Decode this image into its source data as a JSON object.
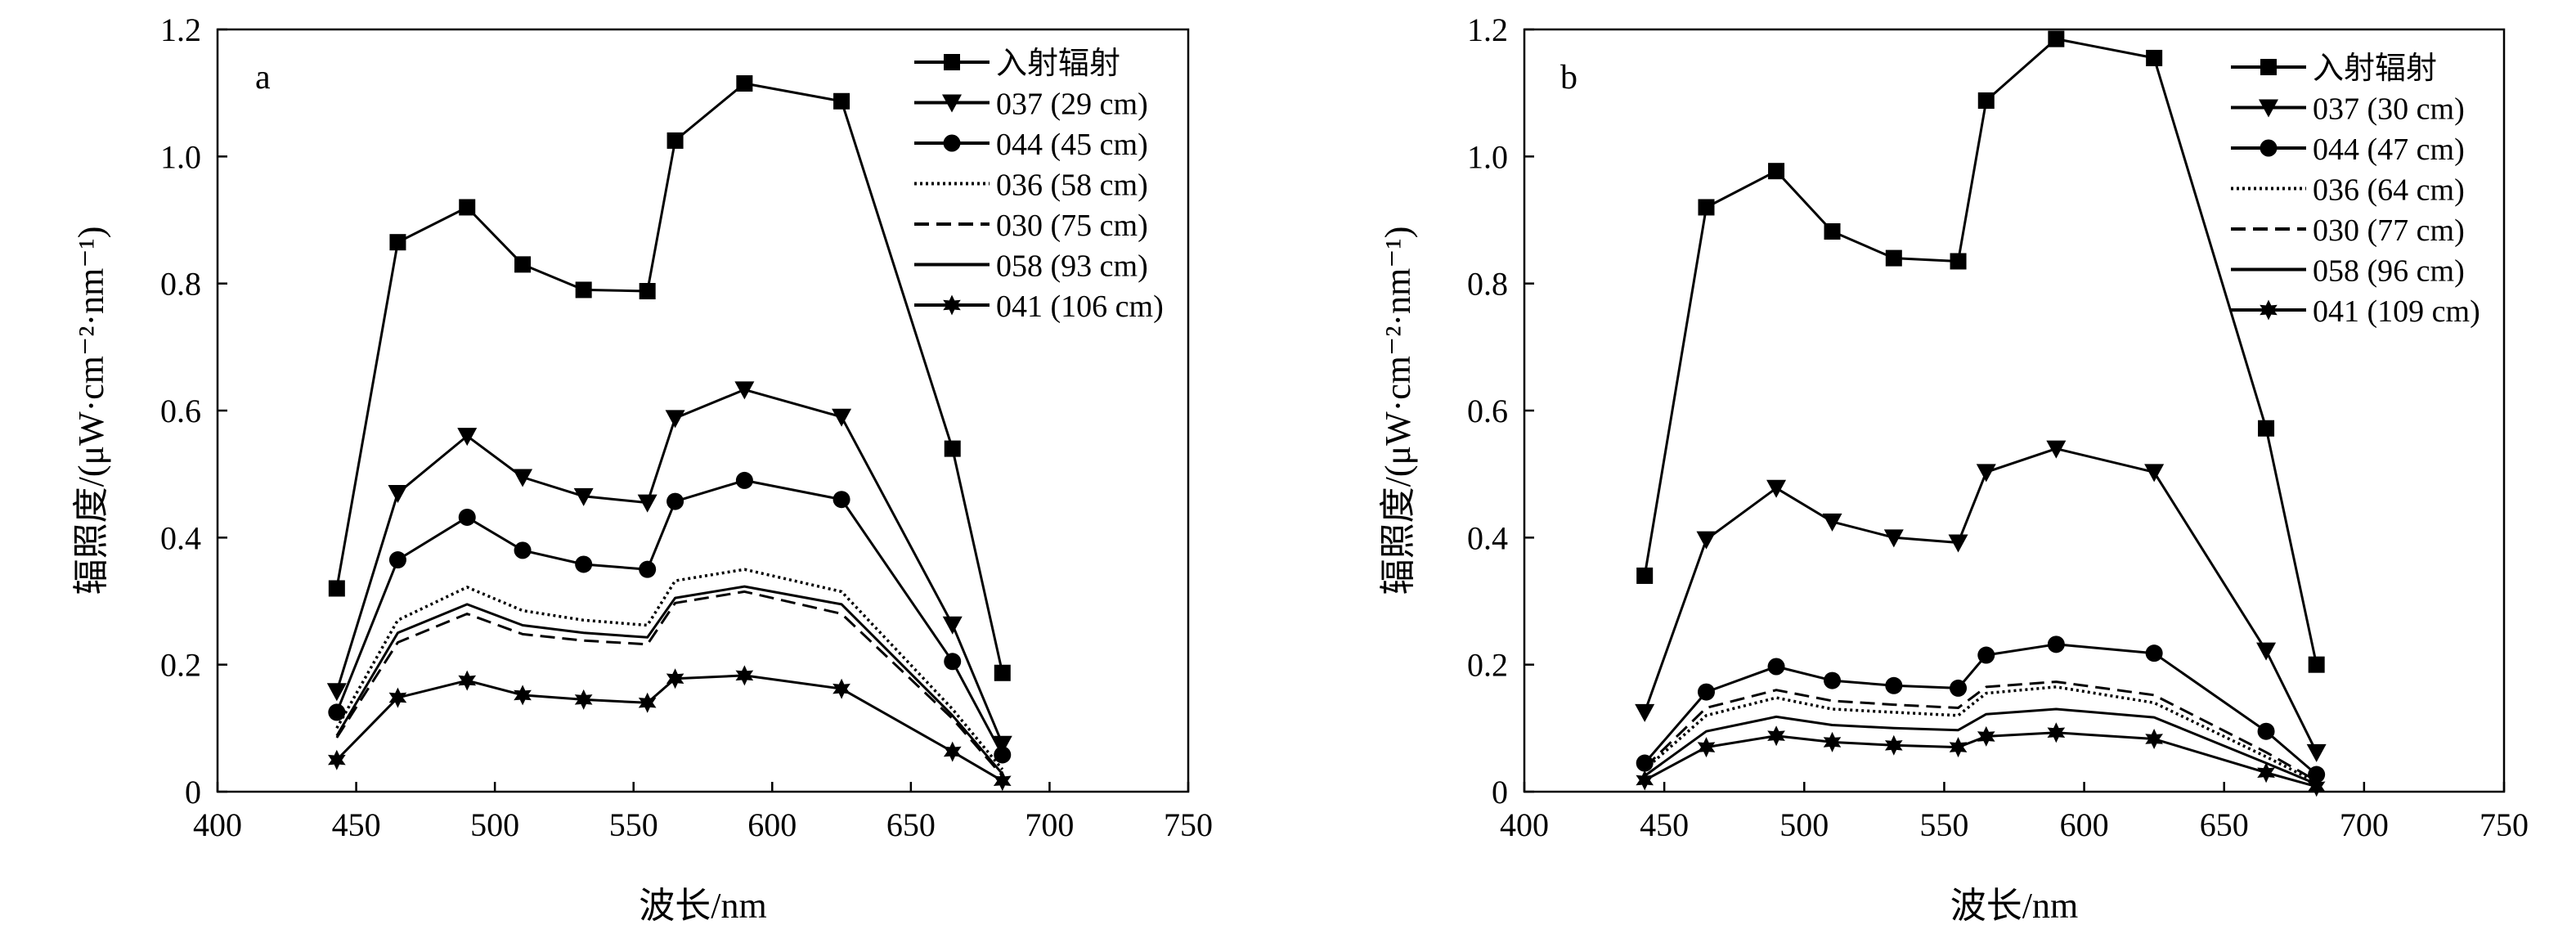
{
  "chart_data": [
    {
      "type": "line",
      "panel_label": "a",
      "xlabel": "波长/nm",
      "ylabel": "辐照度/(μW·cm⁻²·nm⁻¹)",
      "xlim": [
        400,
        750
      ],
      "ylim": [
        0,
        1.2
      ],
      "xticks": [
        "400",
        "450",
        "500",
        "550",
        "600",
        "650",
        "700",
        "750"
      ],
      "yticks": [
        "0",
        "0.2",
        "0.4",
        "0.6",
        "0.8",
        "1.0",
        "1.2"
      ],
      "legend_position": "top-right",
      "x": [
        443,
        465,
        490,
        510,
        532,
        555,
        565,
        590,
        625,
        665,
        683
      ],
      "series": [
        {
          "name": "入射辐射",
          "marker": "square",
          "dash": "solid",
          "values": [
            0.32,
            0.865,
            0.92,
            0.83,
            0.79,
            0.788,
            1.025,
            1.115,
            1.087,
            0.54,
            0.187
          ]
        },
        {
          "name": "037 (29 cm)",
          "marker": "triangle-down",
          "dash": "solid",
          "values": [
            0.158,
            0.47,
            0.56,
            0.495,
            0.465,
            0.455,
            0.588,
            0.633,
            0.59,
            0.263,
            0.075
          ]
        },
        {
          "name": "044 (45 cm)",
          "marker": "circle",
          "dash": "solid",
          "values": [
            0.125,
            0.365,
            0.432,
            0.38,
            0.358,
            0.35,
            0.457,
            0.49,
            0.46,
            0.205,
            0.058
          ]
        },
        {
          "name": "036 (58 cm)",
          "marker": "none",
          "dash": "dotted",
          "values": [
            0.1,
            0.27,
            0.322,
            0.285,
            0.27,
            0.262,
            0.332,
            0.35,
            0.315,
            0.13,
            0.035
          ]
        },
        {
          "name": "030 (75 cm)",
          "marker": "none",
          "dash": "dashed",
          "values": [
            0.085,
            0.235,
            0.28,
            0.248,
            0.238,
            0.232,
            0.297,
            0.315,
            0.28,
            0.115,
            0.025
          ]
        },
        {
          "name": "058 (93 cm)",
          "marker": "none",
          "dash": "solid",
          "values": [
            0.088,
            0.25,
            0.295,
            0.262,
            0.25,
            0.243,
            0.305,
            0.323,
            0.295,
            0.12,
            0.028
          ]
        },
        {
          "name": "041 (106 cm)",
          "marker": "star",
          "dash": "solid",
          "values": [
            0.05,
            0.148,
            0.175,
            0.152,
            0.145,
            0.14,
            0.178,
            0.183,
            0.162,
            0.063,
            0.017
          ]
        }
      ]
    },
    {
      "type": "line",
      "panel_label": "b",
      "xlabel": "波长/nm",
      "ylabel": "辐照度/(μW·cm⁻²·nm⁻¹)",
      "xlim": [
        400,
        750
      ],
      "ylim": [
        0,
        1.2
      ],
      "xticks": [
        "400",
        "450",
        "500",
        "550",
        "600",
        "650",
        "700",
        "750"
      ],
      "yticks": [
        "0",
        "0.2",
        "0.4",
        "0.6",
        "0.8",
        "1.0",
        "1.2"
      ],
      "legend_position": "top-right",
      "x": [
        443,
        465,
        490,
        510,
        532,
        555,
        565,
        590,
        625,
        665,
        683
      ],
      "series": [
        {
          "name": "入射辐射",
          "marker": "square",
          "dash": "solid",
          "values": [
            0.34,
            0.92,
            0.977,
            0.882,
            0.84,
            0.835,
            1.088,
            1.185,
            1.155,
            0.572,
            0.2
          ]
        },
        {
          "name": "037 (30 cm)",
          "marker": "triangle-down",
          "dash": "solid",
          "values": [
            0.125,
            0.397,
            0.478,
            0.425,
            0.4,
            0.392,
            0.503,
            0.54,
            0.503,
            0.222,
            0.062
          ]
        },
        {
          "name": "044 (47 cm)",
          "marker": "circle",
          "dash": "solid",
          "values": [
            0.045,
            0.157,
            0.197,
            0.175,
            0.167,
            0.163,
            0.215,
            0.232,
            0.218,
            0.095,
            0.027
          ]
        },
        {
          "name": "036 (64 cm)",
          "marker": "none",
          "dash": "dotted",
          "values": [
            0.035,
            0.12,
            0.148,
            0.13,
            0.125,
            0.12,
            0.155,
            0.165,
            0.14,
            0.055,
            0.015
          ]
        },
        {
          "name": "030 (77 cm)",
          "marker": "none",
          "dash": "dashed",
          "values": [
            0.038,
            0.132,
            0.16,
            0.143,
            0.137,
            0.132,
            0.165,
            0.173,
            0.152,
            0.062,
            0.017
          ]
        },
        {
          "name": "058 (96 cm)",
          "marker": "none",
          "dash": "solid",
          "values": [
            0.025,
            0.095,
            0.118,
            0.105,
            0.1,
            0.097,
            0.122,
            0.13,
            0.117,
            0.045,
            0.012
          ]
        },
        {
          "name": "041 (109 cm)",
          "marker": "star",
          "dash": "solid",
          "values": [
            0.018,
            0.07,
            0.088,
            0.078,
            0.073,
            0.07,
            0.087,
            0.093,
            0.083,
            0.03,
            0.008
          ]
        }
      ]
    }
  ]
}
